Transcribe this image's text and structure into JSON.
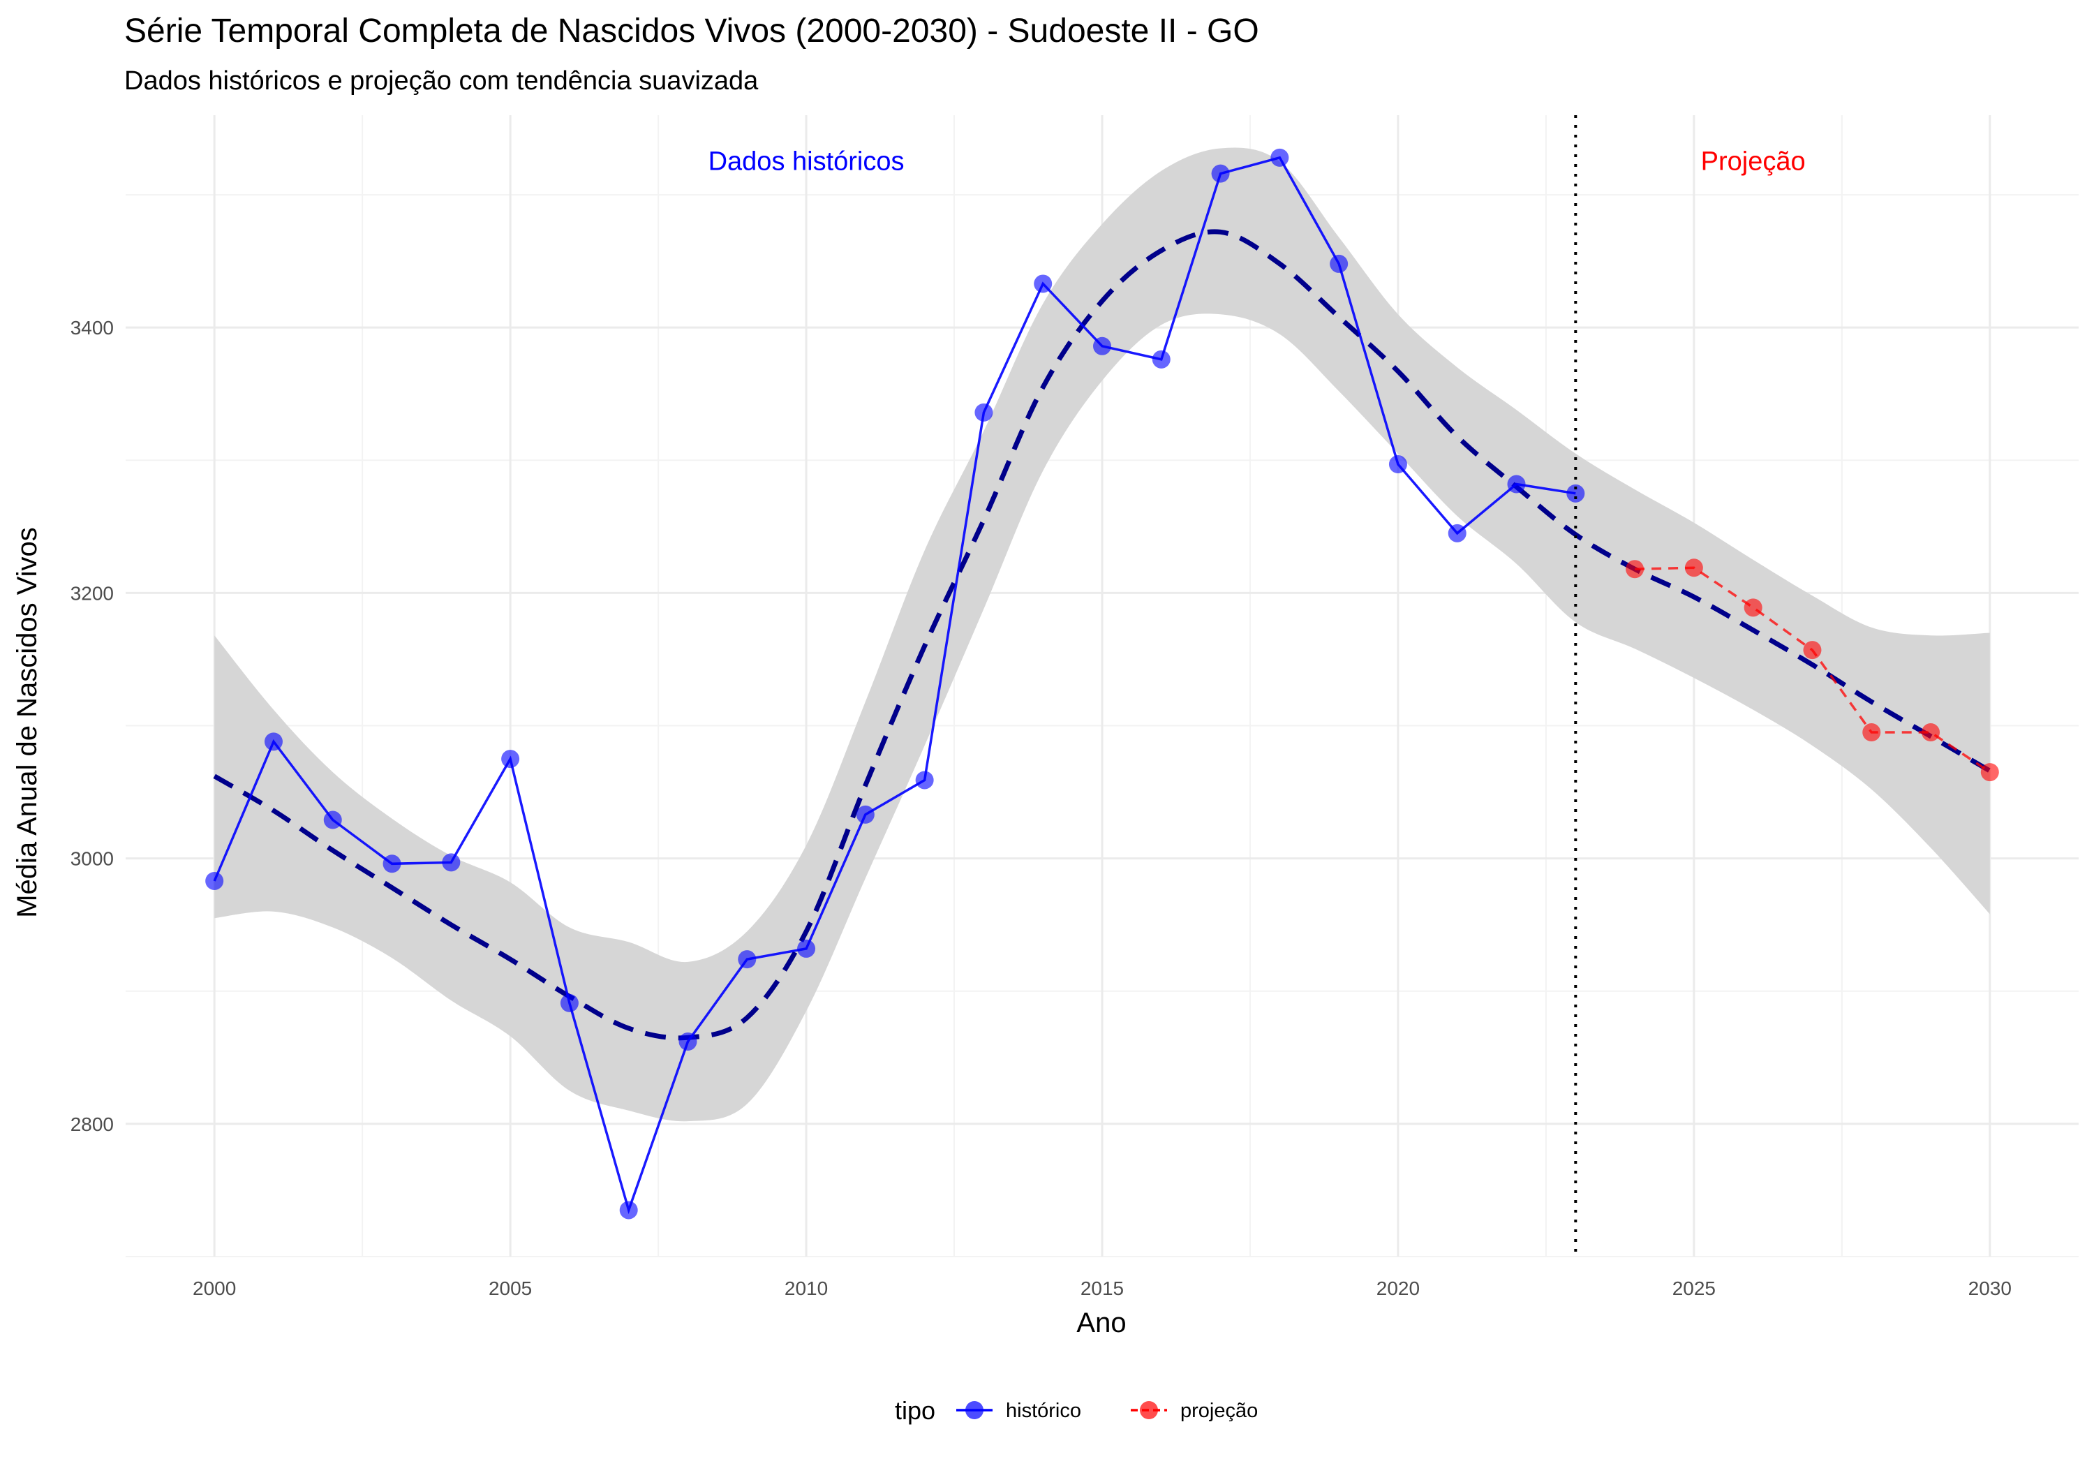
{
  "chart_data": {
    "type": "line",
    "title": "Série Temporal Completa de Nascidos Vivos (2000-2030) -  Sudoeste II - GO",
    "subtitle": "Dados históricos e projeção com tendência suavizada",
    "xlabel": "Ano",
    "ylabel": "Média Anual de Nascidos Vivos",
    "xlim": [
      1998.5,
      2031.5
    ],
    "ylim": [
      2700,
      3560
    ],
    "x_ticks": [
      2000,
      2005,
      2010,
      2015,
      2020,
      2025,
      2030
    ],
    "y_ticks": [
      2800,
      3000,
      3200,
      3400
    ],
    "divider_x": 2023,
    "grid": true,
    "legend_position": "bottom",
    "legend_title": "tipo",
    "annotations": [
      {
        "text": "Dados históricos",
        "x": 2010,
        "y": 3525,
        "color": "#0000ff"
      },
      {
        "text": "Projeção",
        "x": 2026,
        "y": 3525,
        "color": "#ff0000"
      }
    ],
    "series": [
      {
        "name": "histórico",
        "color": "#0000ff",
        "dashed": false,
        "x": [
          2000,
          2001,
          2002,
          2003,
          2004,
          2005,
          2006,
          2007,
          2008,
          2009,
          2010,
          2011,
          2012,
          2013,
          2014,
          2015,
          2016,
          2017,
          2018,
          2019,
          2020,
          2021,
          2022,
          2023
        ],
        "values": [
          2983,
          3088,
          3029,
          2996,
          2997,
          3075,
          2891,
          2735,
          2862,
          2924,
          2932,
          3033,
          3059,
          3336,
          3433,
          3386,
          3376,
          3516,
          3528,
          3448,
          3297,
          3245,
          3282,
          3275
        ]
      },
      {
        "name": "projeção",
        "color": "#ff0000",
        "dashed": true,
        "x": [
          2024,
          2025,
          2026,
          2027,
          2028,
          2029,
          2030
        ],
        "values": [
          3218,
          3219,
          3189,
          3157,
          3095,
          3095,
          3065
        ]
      }
    ],
    "trend": {
      "name": "tendência suavizada",
      "color": "#00008b",
      "x": [
        2000,
        2001,
        2002,
        2003,
        2004,
        2005,
        2006,
        2007,
        2008,
        2009,
        2010,
        2011,
        2012,
        2013,
        2014,
        2015,
        2016,
        2017,
        2018,
        2019,
        2020,
        2021,
        2022,
        2023,
        2024,
        2025,
        2026,
        2027,
        2028,
        2029,
        2030
      ],
      "values": [
        3062,
        3036,
        3006,
        2978,
        2950,
        2924,
        2896,
        2872,
        2865,
        2880,
        2945,
        3055,
        3160,
        3255,
        3355,
        3420,
        3458,
        3472,
        3448,
        3408,
        3367,
        3318,
        3280,
        3244,
        3218,
        3197,
        3172,
        3146,
        3118,
        3092,
        3066
      ],
      "ci_lower": [
        2955,
        2960,
        2948,
        2925,
        2893,
        2866,
        2825,
        2810,
        2802,
        2815,
        2885,
        2985,
        3085,
        3188,
        3292,
        3360,
        3402,
        3410,
        3395,
        3352,
        3305,
        3258,
        3222,
        3178,
        3158,
        3136,
        3112,
        3085,
        3052,
        3008,
        2958
      ],
      "ci_upper": [
        3168,
        3112,
        3065,
        3030,
        3002,
        2982,
        2948,
        2937,
        2922,
        2945,
        3010,
        3118,
        3232,
        3322,
        3418,
        3478,
        3518,
        3535,
        3525,
        3468,
        3410,
        3370,
        3338,
        3305,
        3278,
        3253,
        3225,
        3198,
        3174,
        3168,
        3170
      ]
    }
  }
}
